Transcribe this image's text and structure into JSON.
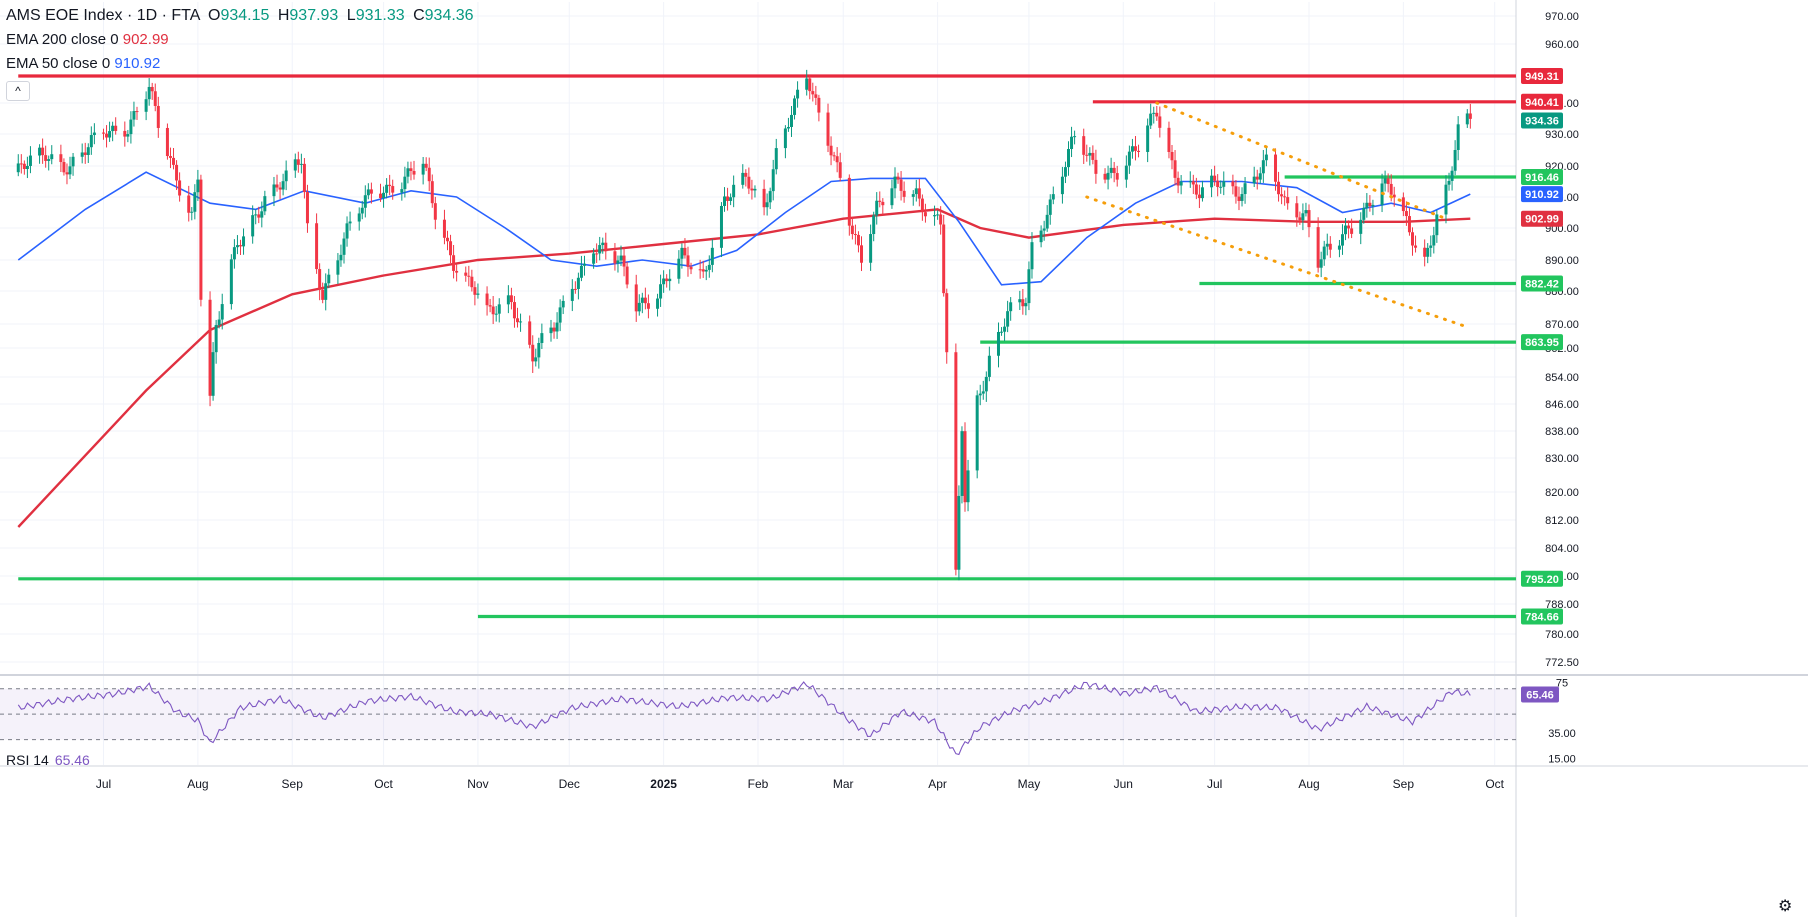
{
  "legend": {
    "symbol": "AMS EOE Index · 1D · FTA",
    "open_label": "O",
    "open": "934.15",
    "high_label": "H",
    "high": "937.93",
    "low_label": "L",
    "low": "931.33",
    "close_label": "C",
    "close": "934.36",
    "ema200_label": "EMA 200 close 0",
    "ema200_value": "902.99",
    "ema50_label": "EMA 50 close 0",
    "ema50_value": "910.92",
    "collapse_glyph": "^"
  },
  "rsi_legend": {
    "label": "RSI 14",
    "value": "65.46"
  },
  "settings_glyph": "⚙",
  "colors": {
    "up": "#089981",
    "down": "#f23645",
    "ema200": "#e03040",
    "ema50": "#2962ff",
    "support": "#22c55e",
    "resistance": "#e8283c",
    "trend": "#f59e0b",
    "rsi": "#7e57c2"
  },
  "chart_data": [
    {
      "type": "candlestick",
      "title": "AMS EOE Index · 1D · FTA",
      "x_ticks": [
        "Jul",
        "Aug",
        "Sep",
        "Oct",
        "Nov",
        "Dec",
        "2025",
        "Feb",
        "Mar",
        "Apr",
        "May",
        "Jun",
        "Jul",
        "Aug",
        "Sep",
        "Oct"
      ],
      "y_ticks": [
        "970.00",
        "960.00",
        "940.00",
        "930.00",
        "920.00",
        "910.00",
        "900.00",
        "890.00",
        "880.00",
        "870.00",
        "862.00",
        "854.00",
        "846.00",
        "838.00",
        "830.00",
        "820.00",
        "812.00",
        "804.00",
        "796.00",
        "788.00",
        "780.00",
        "772.50"
      ],
      "ylim": [
        768,
        972
      ],
      "close_series": [
        [
          "2024-06-03",
          918
        ],
        [
          "2024-06-12",
          924
        ],
        [
          "2024-06-20",
          920
        ],
        [
          "2024-07-01",
          930
        ],
        [
          "2024-07-09",
          933
        ],
        [
          "2024-07-16",
          945
        ],
        [
          "2024-07-19",
          932
        ],
        [
          "2024-07-24",
          918
        ],
        [
          "2024-07-30",
          905
        ],
        [
          "2024-08-01",
          918
        ],
        [
          "2024-08-02",
          880
        ],
        [
          "2024-08-05",
          848
        ],
        [
          "2024-08-07",
          868
        ],
        [
          "2024-08-14",
          895
        ],
        [
          "2024-08-23",
          910
        ],
        [
          "2024-08-30",
          915
        ],
        [
          "2024-09-04",
          922
        ],
        [
          "2024-09-06",
          900
        ],
        [
          "2024-09-11",
          880
        ],
        [
          "2024-09-19",
          898
        ],
        [
          "2024-09-27",
          912
        ],
        [
          "2024-10-07",
          915
        ],
        [
          "2024-10-14",
          920
        ],
        [
          "2024-10-18",
          905
        ],
        [
          "2024-10-24",
          890
        ],
        [
          "2024-10-31",
          880
        ],
        [
          "2024-11-04",
          872
        ],
        [
          "2024-11-12",
          878
        ],
        [
          "2024-11-19",
          860
        ],
        [
          "2024-11-26",
          868
        ],
        [
          "2024-12-02",
          882
        ],
        [
          "2024-12-09",
          895
        ],
        [
          "2024-12-18",
          888
        ],
        [
          "2024-12-23",
          876
        ],
        [
          "2024-12-30",
          880
        ],
        [
          "2025-01-07",
          890
        ],
        [
          "2025-01-14",
          885
        ],
        [
          "2025-01-21",
          910
        ],
        [
          "2025-01-28",
          915
        ],
        [
          "2025-02-03",
          905
        ],
        [
          "2025-02-07",
          925
        ],
        [
          "2025-02-12",
          938
        ],
        [
          "2025-02-17",
          948
        ],
        [
          "2025-02-21",
          935
        ],
        [
          "2025-02-28",
          918
        ],
        [
          "2025-03-04",
          900
        ],
        [
          "2025-03-07",
          890
        ],
        [
          "2025-03-12",
          905
        ],
        [
          "2025-03-18",
          915
        ],
        [
          "2025-03-25",
          912
        ],
        [
          "2025-03-28",
          905
        ],
        [
          "2025-04-02",
          900
        ],
        [
          "2025-04-04",
          860
        ],
        [
          "2025-04-07",
          795
        ],
        [
          "2025-04-09",
          840
        ],
        [
          "2025-04-10",
          820
        ],
        [
          "2025-04-14",
          848
        ],
        [
          "2025-04-18",
          858
        ],
        [
          "2025-04-24",
          872
        ],
        [
          "2025-04-30",
          878
        ],
        [
          "2025-05-02",
          895
        ],
        [
          "2025-05-09",
          910
        ],
        [
          "2025-05-16",
          928
        ],
        [
          "2025-05-23",
          920
        ],
        [
          "2025-05-30",
          918
        ],
        [
          "2025-06-06",
          925
        ],
        [
          "2025-06-12",
          938
        ],
        [
          "2025-06-18",
          918
        ],
        [
          "2025-06-26",
          910
        ],
        [
          "2025-07-02",
          915
        ],
        [
          "2025-07-10",
          912
        ],
        [
          "2025-07-18",
          920
        ],
        [
          "2025-07-24",
          908
        ],
        [
          "2025-07-31",
          905
        ],
        [
          "2025-08-04",
          890
        ],
        [
          "2025-08-11",
          895
        ],
        [
          "2025-08-18",
          905
        ],
        [
          "2025-08-25",
          915
        ],
        [
          "2025-08-29",
          910
        ],
        [
          "2025-09-03",
          898
        ],
        [
          "2025-09-08",
          890
        ],
        [
          "2025-09-12",
          905
        ],
        [
          "2025-09-16",
          915
        ],
        [
          "2025-09-19",
          930
        ],
        [
          "2025-09-23",
          934.36
        ]
      ],
      "ema200_series": [
        [
          "2024-06-03",
          810
        ],
        [
          "2024-07-15",
          850
        ],
        [
          "2024-08-05",
          868
        ],
        [
          "2024-09-01",
          879
        ],
        [
          "2024-10-01",
          885
        ],
        [
          "2024-11-01",
          890
        ],
        [
          "2024-12-01",
          892
        ],
        [
          "2025-01-01",
          895
        ],
        [
          "2025-02-01",
          898
        ],
        [
          "2025-03-01",
          903
        ],
        [
          "2025-04-01",
          906
        ],
        [
          "2025-04-15",
          900
        ],
        [
          "2025-05-01",
          897
        ],
        [
          "2025-06-01",
          901
        ],
        [
          "2025-07-01",
          903
        ],
        [
          "2025-08-01",
          902
        ],
        [
          "2025-09-01",
          902
        ],
        [
          "2025-09-23",
          902.99
        ]
      ],
      "ema50_series": [
        [
          "2024-06-03",
          890
        ],
        [
          "2024-06-25",
          906
        ],
        [
          "2024-07-15",
          918
        ],
        [
          "2024-08-05",
          908
        ],
        [
          "2024-08-20",
          906
        ],
        [
          "2024-09-05",
          912
        ],
        [
          "2024-09-25",
          908
        ],
        [
          "2024-10-10",
          912
        ],
        [
          "2024-10-25",
          910
        ],
        [
          "2024-11-10",
          900
        ],
        [
          "2024-11-25",
          890
        ],
        [
          "2024-12-10",
          888
        ],
        [
          "2024-12-25",
          890
        ],
        [
          "2025-01-10",
          888
        ],
        [
          "2025-01-25",
          893
        ],
        [
          "2025-02-10",
          905
        ],
        [
          "2025-02-25",
          915
        ],
        [
          "2025-03-10",
          916
        ],
        [
          "2025-03-28",
          916
        ],
        [
          "2025-04-08",
          902
        ],
        [
          "2025-04-22",
          882
        ],
        [
          "2025-05-05",
          883
        ],
        [
          "2025-05-20",
          897
        ],
        [
          "2025-06-05",
          908
        ],
        [
          "2025-06-20",
          915
        ],
        [
          "2025-07-10",
          915
        ],
        [
          "2025-07-28",
          913
        ],
        [
          "2025-08-12",
          905
        ],
        [
          "2025-08-28",
          908
        ],
        [
          "2025-09-10",
          905
        ],
        [
          "2025-09-23",
          910.92
        ]
      ],
      "horizontal_levels": [
        {
          "value": 949.31,
          "label": "949.31",
          "color": "resistance",
          "from": "2024-06-03"
        },
        {
          "value": 940.41,
          "label": "940.41",
          "color": "resistance",
          "from": "2025-05-22"
        },
        {
          "value": 934.36,
          "label": "934.36",
          "color": "up",
          "from": null
        },
        {
          "value": 916.46,
          "label": "916.46",
          "color": "support",
          "from": "2025-07-24"
        },
        {
          "value": 910.92,
          "label": "910.92",
          "color": "ema50",
          "from": null
        },
        {
          "value": 902.99,
          "label": "902.99",
          "color": "ema200",
          "from": null
        },
        {
          "value": 882.42,
          "label": "882.42",
          "color": "support",
          "from": "2025-06-26"
        },
        {
          "value": 863.95,
          "label": "863.95",
          "color": "support",
          "from": "2025-04-15"
        },
        {
          "value": 795.2,
          "label": "795.20",
          "color": "support",
          "from": "2024-06-03"
        },
        {
          "value": 784.66,
          "label": "784.66",
          "color": "support",
          "from": "2024-11-01"
        }
      ],
      "trendlines": [
        {
          "from": [
            "2025-06-12",
            940
          ],
          "to": [
            "2025-09-15",
            903
          ]
        },
        {
          "from": [
            "2025-05-20",
            910
          ],
          "to": [
            "2025-09-22",
            869
          ]
        }
      ]
    },
    {
      "type": "line",
      "title": "RSI 14",
      "y_ticks": [
        "75",
        "35.00",
        "15.00"
      ],
      "ylim": [
        10,
        80
      ],
      "bands": [
        70,
        50,
        30
      ],
      "series": [
        [
          "2024-06-03",
          55
        ],
        [
          "2024-06-20",
          62
        ],
        [
          "2024-07-05",
          66
        ],
        [
          "2024-07-16",
          72
        ],
        [
          "2024-07-25",
          52
        ],
        [
          "2024-08-01",
          45
        ],
        [
          "2024-08-05",
          27
        ],
        [
          "2024-08-15",
          55
        ],
        [
          "2024-08-28",
          62
        ],
        [
          "2024-09-11",
          47
        ],
        [
          "2024-09-25",
          60
        ],
        [
          "2024-10-10",
          64
        ],
        [
          "2024-10-24",
          52
        ],
        [
          "2024-11-05",
          50
        ],
        [
          "2024-11-19",
          40
        ],
        [
          "2024-12-02",
          55
        ],
        [
          "2024-12-18",
          62
        ],
        [
          "2025-01-06",
          56
        ],
        [
          "2025-01-22",
          63
        ],
        [
          "2025-02-05",
          62
        ],
        [
          "2025-02-17",
          74
        ],
        [
          "2025-03-03",
          45
        ],
        [
          "2025-03-10",
          33
        ],
        [
          "2025-03-20",
          52
        ],
        [
          "2025-03-31",
          44
        ],
        [
          "2025-04-07",
          18
        ],
        [
          "2025-04-15",
          40
        ],
        [
          "2025-04-25",
          52
        ],
        [
          "2025-05-08",
          62
        ],
        [
          "2025-05-20",
          74
        ],
        [
          "2025-06-02",
          66
        ],
        [
          "2025-06-12",
          71
        ],
        [
          "2025-06-25",
          52
        ],
        [
          "2025-07-10",
          56
        ],
        [
          "2025-07-22",
          55
        ],
        [
          "2025-08-04",
          38
        ],
        [
          "2025-08-20",
          56
        ],
        [
          "2025-09-04",
          44
        ],
        [
          "2025-09-17",
          68
        ],
        [
          "2025-09-23",
          65.46
        ]
      ]
    }
  ]
}
